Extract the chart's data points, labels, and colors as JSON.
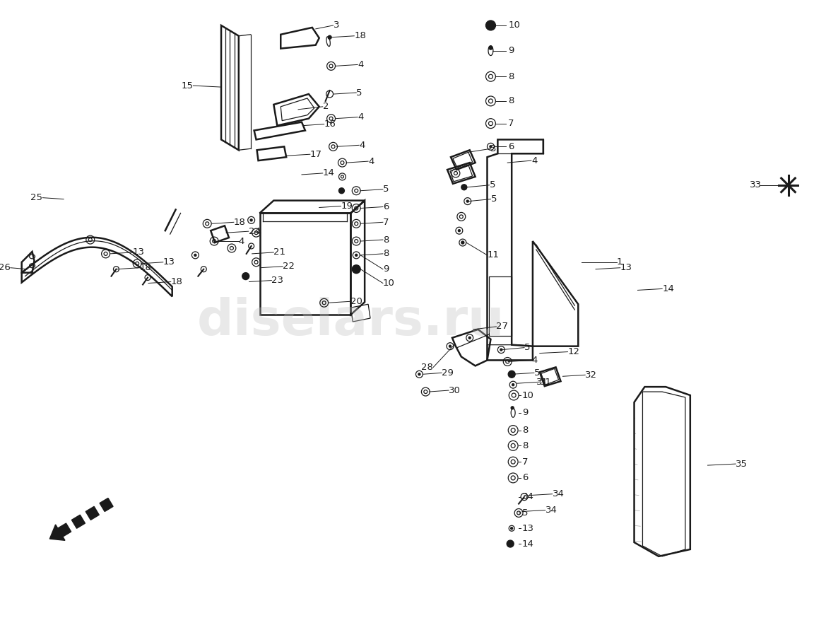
{
  "bg_color": "#ffffff",
  "line_color": "#1a1a1a",
  "watermark_text": "diselars.ru",
  "watermark_color": "#c0c0c0",
  "watermark_alpha": 0.35
}
